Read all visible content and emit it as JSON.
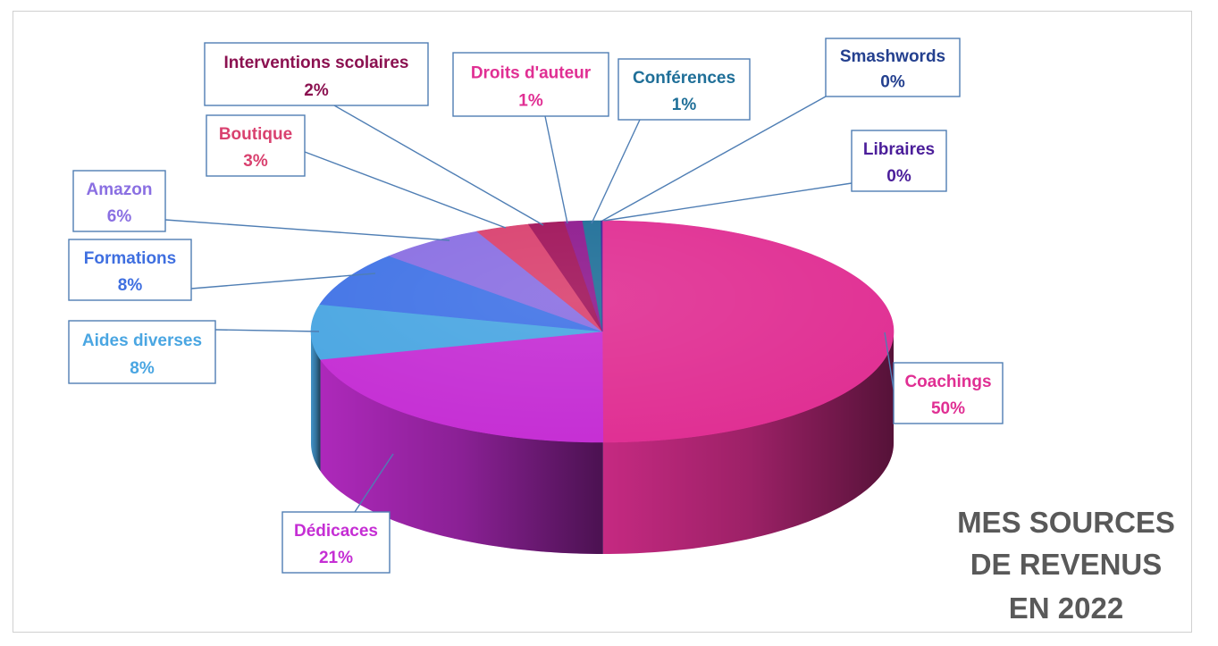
{
  "chart_data": {
    "type": "pie",
    "title_lines": [
      "MES SOURCES",
      "DE REVENUS",
      "EN 2022"
    ],
    "slices": [
      {
        "label": "Coachings",
        "value": 50,
        "value_label": "50%",
        "color": "#e02f93",
        "text_color": "#e02f93"
      },
      {
        "label": "Dédicaces",
        "value": 21,
        "value_label": "21%",
        "color": "#c52ed4",
        "text_color": "#c52ed4"
      },
      {
        "label": "Aides diverses",
        "value": 8,
        "value_label": "8%",
        "color": "#4aa6e2",
        "text_color": "#4aa6e2"
      },
      {
        "label": "Formations",
        "value": 8,
        "value_label": "8%",
        "color": "#4173e6",
        "text_color": "#3f6fe0"
      },
      {
        "label": "Amazon",
        "value": 6,
        "value_label": "6%",
        "color": "#8a6fe2",
        "text_color": "#8a6fe2"
      },
      {
        "label": "Boutique",
        "value": 3,
        "value_label": "3%",
        "color": "#d9416f",
        "text_color": "#d9416f"
      },
      {
        "label": "Interventions scolaires",
        "value": 2,
        "value_label": "2%",
        "color": "#a0145a",
        "text_color": "#8b1150"
      },
      {
        "label": "Droits d'auteur",
        "value": 1,
        "value_label": "1%",
        "color": "#8e1a8e",
        "text_color": "#e02f93"
      },
      {
        "label": "Conférences",
        "value": 1,
        "value_label": "1%",
        "color": "#1f6f98",
        "text_color": "#1f6f98"
      },
      {
        "label": "Smashwords",
        "value": 0,
        "value_label": "0%",
        "color": "#24408f",
        "text_color": "#24408f"
      },
      {
        "label": "Libraires",
        "value": 0,
        "value_label": "0%",
        "color": "#4b1e9a",
        "text_color": "#4b1e9a"
      }
    ],
    "label_border_color": "#4f7eb4",
    "leader_line_color": "#4f7eb4",
    "title_color": "#595959"
  }
}
